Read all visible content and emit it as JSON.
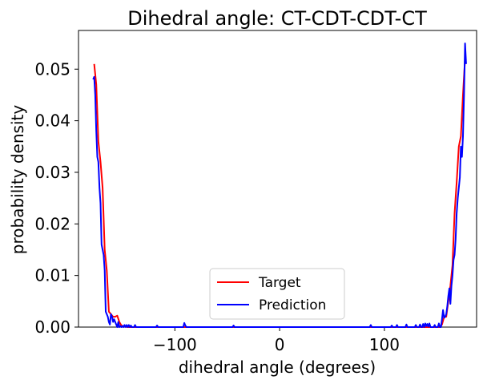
{
  "chart_data": {
    "type": "line",
    "title": "Dihedral angle: CT-CDT-CDT-CT",
    "xlabel": "dihedral angle (degrees)",
    "ylabel": "probability density",
    "xlim": [
      -192,
      188
    ],
    "ylim": [
      0,
      0.0575
    ],
    "xticks": [
      -100,
      0,
      100
    ],
    "xtick_labels": [
      "−100",
      "0",
      "100"
    ],
    "yticks": [
      0.0,
      0.01,
      0.02,
      0.03,
      0.04,
      0.05
    ],
    "ytick_labels": [
      "0.00",
      "0.01",
      "0.02",
      "0.03",
      "0.04",
      "0.05"
    ],
    "grid": false,
    "legend_position": "lower center",
    "series": [
      {
        "name": "Target",
        "color": "#ff0000",
        "x": [
          -177,
          -175,
          -173,
          -171,
          -169,
          -167,
          -165,
          -163,
          -161,
          -159,
          -157,
          -155,
          -153,
          -151,
          -149,
          -147,
          -145,
          -140,
          -130,
          -120,
          -110,
          -100,
          -90,
          -80,
          -60,
          -40,
          -20,
          0,
          20,
          40,
          60,
          80,
          100,
          110,
          120,
          130,
          140,
          145,
          150,
          153,
          155,
          157,
          159,
          161,
          163,
          165,
          167,
          169,
          171,
          173,
          175,
          177
        ],
        "y": [
          0.051,
          0.047,
          0.036,
          0.032,
          0.027,
          0.015,
          0.011,
          0.003,
          0.0025,
          0.002,
          0.002,
          0.0022,
          0.001,
          0.0003,
          0.0002,
          0.0001,
          0.0,
          0.0,
          0.0,
          0.0,
          0.0,
          0.0,
          0.0,
          0.0,
          0.0,
          0.0,
          0.0,
          0.0,
          0.0,
          0.0,
          0.0,
          0.0,
          0.0,
          0.0,
          0.0,
          0.0,
          0.0,
          0.0,
          0.0,
          0.0,
          0.0005,
          0.002,
          0.002,
          0.005,
          0.008,
          0.012,
          0.022,
          0.028,
          0.035,
          0.037,
          0.045,
          0.052
        ]
      },
      {
        "name": "Prediction",
        "color": "#0000ff",
        "x": [
          -178,
          -177,
          -176,
          -175,
          -174,
          -173,
          -172,
          -171,
          -170,
          -169,
          -168,
          -167,
          -166,
          -165,
          -164,
          -163,
          -162,
          -161,
          -160,
          -159,
          -158,
          -157,
          -156,
          -155,
          -154,
          -153,
          -152,
          -151,
          -150,
          -149,
          -148,
          -147,
          -146,
          -145,
          -144,
          -143,
          -142,
          -141,
          -140,
          -139,
          -138,
          -137,
          -136,
          -135,
          -130,
          -118,
          -117,
          -116,
          -100,
          -92,
          -91,
          -90,
          -89,
          -80,
          -60,
          -45,
          -44,
          -43,
          -42,
          -20,
          0,
          20,
          40,
          60,
          80,
          86,
          87,
          88,
          100,
          106,
          107,
          108,
          111,
          112,
          113,
          120,
          121,
          122,
          129,
          130,
          131,
          133,
          134,
          135,
          136,
          137,
          138,
          139,
          140,
          141,
          142,
          143,
          144,
          145,
          146,
          147,
          148,
          149,
          150,
          151,
          152,
          153,
          154,
          155,
          156,
          157,
          158,
          159,
          160,
          161,
          162,
          163,
          164,
          165,
          166,
          167,
          168,
          169,
          170,
          171,
          172,
          173,
          174,
          175,
          176,
          177,
          178
        ],
        "y": [
          0.048,
          0.0485,
          0.045,
          0.038,
          0.033,
          0.032,
          0.027,
          0.024,
          0.016,
          0.015,
          0.014,
          0.011,
          0.003,
          0.0025,
          0.002,
          0.001,
          0.0005,
          0.0025,
          0.002,
          0.001,
          0.0015,
          0.001,
          0.0005,
          0.0,
          0.001,
          0.0,
          0.0002,
          0.0,
          0.0002,
          0.0,
          0.0004,
          0.0,
          0.0004,
          0.0,
          0.0004,
          0.0,
          0.0003,
          0.0,
          0.0,
          0.0,
          0.0004,
          0.0,
          0.0,
          0.0,
          0.0,
          0.0,
          0.0003,
          0.0,
          0.0,
          0.0,
          0.0008,
          0.0003,
          0.0,
          0.0,
          0.0,
          0.0,
          0.0003,
          0.0,
          0.0,
          0.0,
          0.0,
          0.0,
          0.0,
          0.0,
          0.0,
          0.0,
          0.0004,
          0.0,
          0.0,
          0.0,
          0.0003,
          0.0,
          0.0,
          0.0004,
          0.0,
          0.0,
          0.0005,
          0.0,
          0.0,
          0.0004,
          0.0,
          0.0,
          0.0005,
          0.0,
          0.0,
          0.0006,
          0.0,
          0.0007,
          0.0002,
          0.0006,
          0.0001,
          0.0007,
          0.0,
          0.0,
          0.0,
          0.0,
          0.0004,
          0.0,
          0.0,
          0.0,
          0.0007,
          0.0,
          0.0,
          0.0015,
          0.0033,
          0.0018,
          0.002,
          0.0025,
          0.004,
          0.006,
          0.0075,
          0.0045,
          0.008,
          0.01,
          0.013,
          0.014,
          0.017,
          0.022,
          0.025,
          0.027,
          0.029,
          0.035,
          0.033,
          0.037,
          0.045,
          0.055,
          0.051
        ]
      }
    ]
  }
}
